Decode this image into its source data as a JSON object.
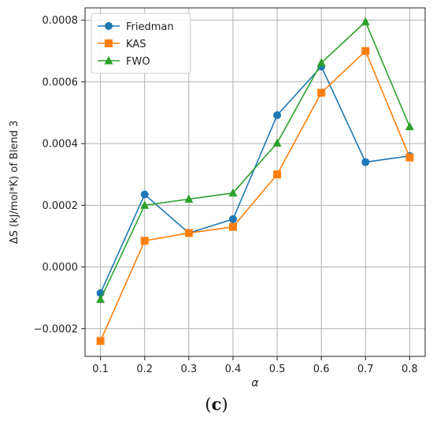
{
  "chart_data": {
    "type": "line",
    "xlabel": "α",
    "ylabel": "ΔS (kJ/mol*K) of Blend 3",
    "x": [
      0.1,
      0.2,
      0.3,
      0.4,
      0.5,
      0.6,
      0.7,
      0.8
    ],
    "xtick_labels": [
      "0.1",
      "0.2",
      "0.3",
      "0.4",
      "0.5",
      "0.6",
      "0.7",
      "0.8"
    ],
    "yticks": [
      -0.0002,
      0.0,
      0.0002,
      0.0004,
      0.0006,
      0.0008
    ],
    "ytick_labels": [
      "−0.0002",
      "0.0000",
      "0.0002",
      "0.0004",
      "0.0006",
      "0.0008"
    ],
    "xlim": [
      0.065,
      0.835
    ],
    "ylim": [
      -0.00029,
      0.00084
    ],
    "grid": true,
    "legend_position": "top-left",
    "series": [
      {
        "name": "Friedman",
        "color": "#1f77b4",
        "marker": "circle",
        "values": [
          -8.5e-05,
          0.000235,
          0.00011,
          0.000155,
          0.000492,
          0.00065,
          0.00034,
          0.00036
        ]
      },
      {
        "name": "KAS",
        "color": "#ff7f0e",
        "marker": "square",
        "values": [
          -0.00024,
          8.5e-05,
          0.00011,
          0.00013,
          0.0003,
          0.000565,
          0.0007,
          0.000355
        ]
      },
      {
        "name": "FWO",
        "color": "#2ca02c",
        "marker": "triangle",
        "values": [
          -0.000105,
          0.0002,
          0.00022,
          0.00024,
          0.000402,
          0.000662,
          0.000795,
          0.000455
        ]
      }
    ]
  },
  "caption": {
    "open": "(",
    "letter": "c",
    "close": ")"
  }
}
